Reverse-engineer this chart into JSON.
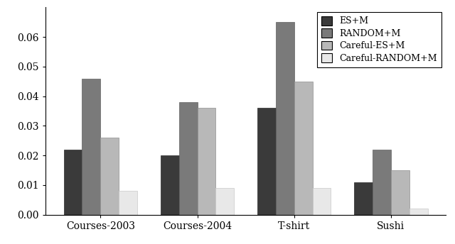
{
  "categories": [
    "Courses-2003",
    "Courses-2004",
    "T-shirt",
    "Sushi"
  ],
  "series": {
    "ES+M": [
      0.022,
      0.02,
      0.036,
      0.011
    ],
    "RANDOM+M": [
      0.046,
      0.038,
      0.065,
      0.022
    ],
    "Careful-ES+M": [
      0.026,
      0.036,
      0.045,
      0.015
    ],
    "Careful-RANDOM+M": [
      0.008,
      0.009,
      0.009,
      0.002
    ]
  },
  "colors": {
    "ES+M": "#3a3a3a",
    "RANDOM+M": "#7a7a7a",
    "Careful-ES+M": "#b8b8b8",
    "Careful-RANDOM+M": "#e8e8e8"
  },
  "edge_colors": {
    "ES+M": "#2a2a2a",
    "RANDOM+M": "#606060",
    "Careful-ES+M": "#909090",
    "Careful-RANDOM+M": "#c8c8c8"
  },
  "ylim": [
    0,
    0.07
  ],
  "yticks": [
    0.0,
    0.01,
    0.02,
    0.03,
    0.04,
    0.05,
    0.06
  ],
  "bar_width": 0.19,
  "legend_order": [
    "ES+M",
    "RANDOM+M",
    "Careful-ES+M",
    "Careful-RANDOM+M"
  ],
  "background_color": "#ffffff"
}
